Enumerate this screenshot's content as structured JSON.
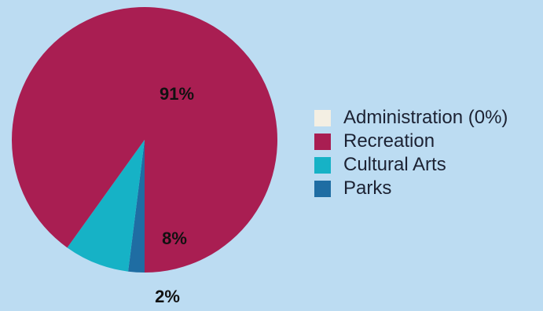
{
  "chart_data": {
    "type": "pie",
    "title": "",
    "slices": [
      {
        "label": "Administration (0%)",
        "value": 0,
        "display": "",
        "color": "#f4efe3"
      },
      {
        "label": "Recreation",
        "value": 91,
        "display": "91%",
        "color": "#a91e52"
      },
      {
        "label": "Cultural Arts",
        "value": 8,
        "display": "8%",
        "color": "#16b2c6"
      },
      {
        "label": "Parks",
        "value": 2,
        "display": "2%",
        "color": "#1f6da3"
      }
    ],
    "legend_position": "right",
    "background_color": "#bcdcf2"
  }
}
